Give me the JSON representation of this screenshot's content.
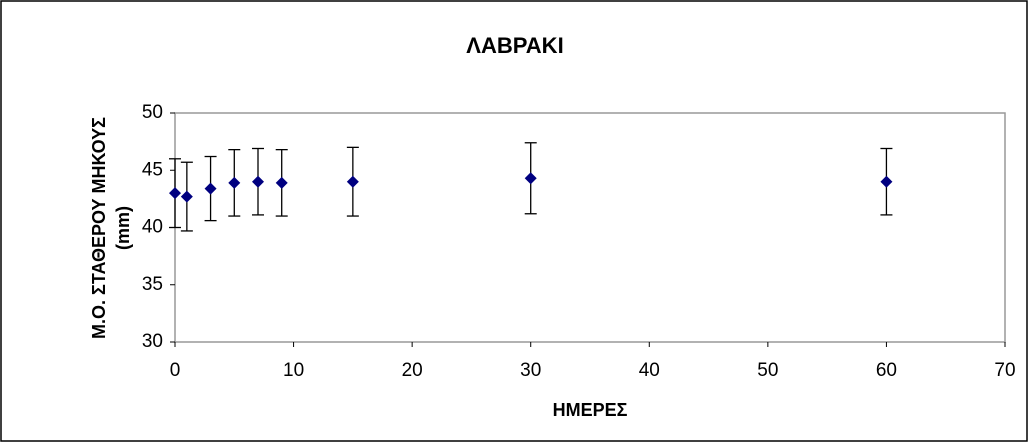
{
  "chart_data": {
    "type": "scatter",
    "title": "ΛΑΒΡΑΚΙ",
    "x_label": "ΗΜΕΡΕΣ",
    "y_label": [
      "Μ.Ο. ΣΤΑΘΕΡΟΥ ΜΗΚΟΥΣ",
      "(mm)"
    ],
    "x": [
      0,
      1,
      3,
      5,
      7,
      9,
      15,
      30,
      60
    ],
    "values": [
      43.0,
      42.7,
      43.4,
      43.9,
      44.0,
      43.9,
      44.0,
      44.3,
      44.0
    ],
    "errors": [
      3.0,
      3.0,
      2.8,
      2.9,
      2.9,
      2.9,
      3.0,
      3.1,
      2.9
    ],
    "color": "#000080",
    "xlim": [
      0,
      70
    ],
    "xticks": [
      0,
      10,
      20,
      30,
      40,
      50,
      60,
      70
    ],
    "ylim": [
      30,
      50
    ],
    "yticks": [
      30,
      35,
      40,
      45,
      50
    ],
    "grid": false
  }
}
